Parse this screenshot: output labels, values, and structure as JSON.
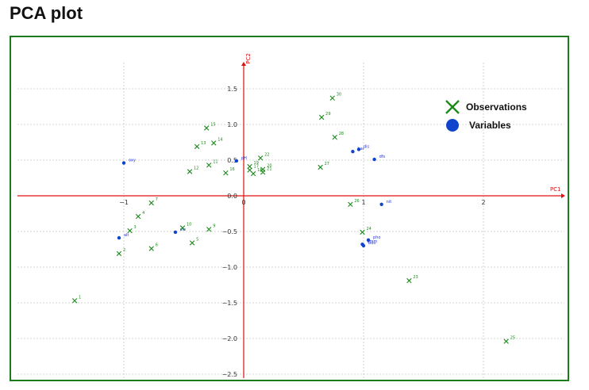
{
  "page": {
    "title": "PCA plot"
  },
  "colors": {
    "observation": "#1b8a1b",
    "variable": "#1144cc",
    "axis": "#e01010",
    "grid": "#c8c8c8",
    "frame": "#1b7a1b"
  },
  "chart_data": {
    "type": "scatter",
    "title": "",
    "xlabel": "PC1",
    "ylabel": "PC2",
    "xlim": [
      -1.9,
      2.7
    ],
    "ylim": [
      -2.55,
      1.85
    ],
    "xticks": [
      -1,
      0,
      1,
      2
    ],
    "xtick_labels": [
      "−1",
      "0",
      "1",
      "2"
    ],
    "yticks": [
      1.5,
      1.0,
      0.5,
      0.0,
      -0.5,
      -1.0,
      -1.5,
      -2.0,
      -2.5
    ],
    "ytick_labels": [
      "1.5",
      "1.0",
      "0.5",
      "0.0",
      "−0.5",
      "−1.0",
      "−1.5",
      "−2.0",
      "−2.5"
    ],
    "grid": true,
    "legend": {
      "placement": "top-right",
      "entries": [
        "Observations",
        "Variables"
      ]
    },
    "series": [
      {
        "name": "Observations",
        "marker": "x",
        "points": [
          {
            "label": "1",
            "x": -1.41,
            "y": -1.47
          },
          {
            "label": "2",
            "x": -1.04,
            "y": -0.81
          },
          {
            "label": "3",
            "x": -0.95,
            "y": -0.49
          },
          {
            "label": "4",
            "x": -0.88,
            "y": -0.29
          },
          {
            "label": "5",
            "x": -0.43,
            "y": -0.66
          },
          {
            "label": "6",
            "x": -0.77,
            "y": -0.74
          },
          {
            "label": "7",
            "x": -0.77,
            "y": -0.1
          },
          {
            "label": "9",
            "x": -0.29,
            "y": -0.47
          },
          {
            "label": "10",
            "x": -0.51,
            "y": -0.45
          },
          {
            "label": "11",
            "x": -0.29,
            "y": 0.43
          },
          {
            "label": "12",
            "x": -0.45,
            "y": 0.34
          },
          {
            "label": "13",
            "x": -0.39,
            "y": 0.69
          },
          {
            "label": "14",
            "x": -0.25,
            "y": 0.74
          },
          {
            "label": "15",
            "x": -0.31,
            "y": 0.95
          },
          {
            "label": "16",
            "x": -0.15,
            "y": 0.32
          },
          {
            "label": "19",
            "x": 0.05,
            "y": 0.41
          },
          {
            "label": "20",
            "x": 0.16,
            "y": 0.37
          },
          {
            "label": "21",
            "x": 0.16,
            "y": 0.33
          },
          {
            "label": "18",
            "x": 0.08,
            "y": 0.31
          },
          {
            "label": "17",
            "x": 0.05,
            "y": 0.36
          },
          {
            "label": "22",
            "x": 0.14,
            "y": 0.53
          },
          {
            "label": "23",
            "x": 1.38,
            "y": -1.19
          },
          {
            "label": "24",
            "x": 0.99,
            "y": -0.51
          },
          {
            "label": "25",
            "x": 2.19,
            "y": -2.04
          },
          {
            "label": "26",
            "x": 0.89,
            "y": -0.12
          },
          {
            "label": "27",
            "x": 0.64,
            "y": 0.4
          },
          {
            "label": "28",
            "x": 0.76,
            "y": 0.82
          },
          {
            "label": "29",
            "x": 0.65,
            "y": 1.1
          },
          {
            "label": "30",
            "x": 0.74,
            "y": 1.37
          }
        ]
      },
      {
        "name": "Variables",
        "marker": "o",
        "points": [
          {
            "label": "oxy",
            "x": -1.0,
            "y": 0.46
          },
          {
            "label": "pH",
            "x": -0.06,
            "y": 0.49
          },
          {
            "label": "har",
            "x": 0.91,
            "y": 0.62
          },
          {
            "label": "dis",
            "x": 0.96,
            "y": 0.65
          },
          {
            "label": "dfs",
            "x": 1.09,
            "y": 0.51
          },
          {
            "label": "nit",
            "x": 1.15,
            "y": -0.12
          },
          {
            "label": "alt",
            "x": -1.04,
            "y": -0.59
          },
          {
            "label": "slo",
            "x": -0.57,
            "y": -0.51
          },
          {
            "label": "pho",
            "x": 1.04,
            "y": -0.62
          },
          {
            "label": "amm",
            "x": 0.99,
            "y": -0.68
          },
          {
            "label": "bdo",
            "x": 1.0,
            "y": -0.7
          }
        ]
      }
    ]
  }
}
